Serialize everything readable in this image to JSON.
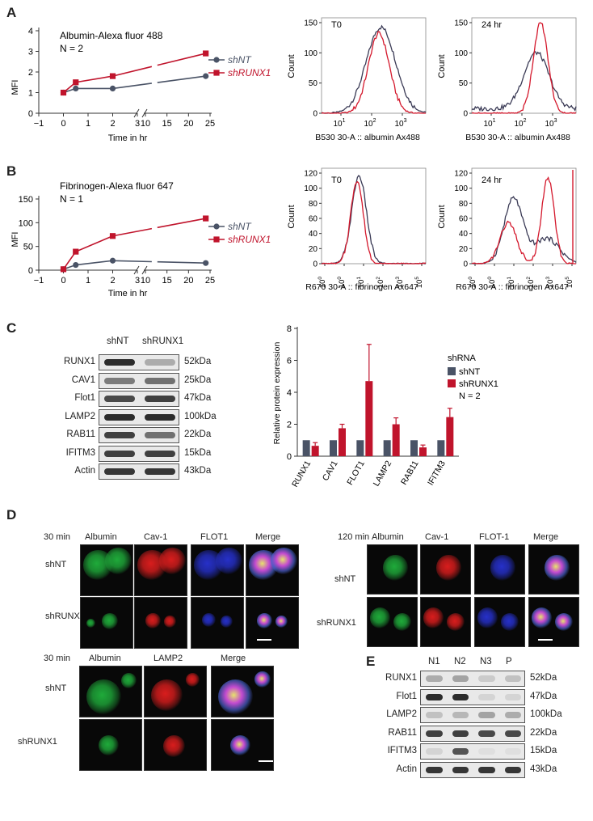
{
  "panels": {
    "A": "A",
    "B": "B",
    "C": "C",
    "D": "D",
    "E": "E"
  },
  "panelA": {
    "line": {
      "title": "Albumin-Alexa fluor 488",
      "subtitle": "N = 2",
      "ylabel": "MFI",
      "xlabel": "Time in hr",
      "yticks": [
        "0",
        "1",
        "2",
        "3",
        "4"
      ],
      "xticks": [
        "−1",
        "0",
        "1",
        "2",
        "3",
        "10",
        "15",
        "20",
        "25"
      ],
      "legend": [
        "shNT",
        "shRUNX1"
      ]
    },
    "hist1": {
      "label": "T0",
      "ylabel": "Count",
      "xlabel": "B530 30-A :: albumin Ax488",
      "yticks": [
        "0",
        "50",
        "100",
        "150"
      ],
      "xticks": [
        "10",
        "10",
        "10"
      ],
      "xexp": [
        "1",
        "2",
        "3"
      ]
    },
    "hist2": {
      "label": "24 hr",
      "ylabel": "Count",
      "xlabel": "B530 30-A :: albumin Ax488",
      "yticks": [
        "0",
        "50",
        "100",
        "150"
      ],
      "xticks": [
        "10",
        "10",
        "10"
      ],
      "xexp": [
        "1",
        "2",
        "3"
      ]
    }
  },
  "panelB": {
    "line": {
      "title": "Fibrinogen-Alexa fluor 647",
      "subtitle": "N = 1",
      "ylabel": "MFI",
      "xlabel": "Time in hr",
      "yticks": [
        "0",
        "50",
        "100",
        "150"
      ],
      "xticks": [
        "−1",
        "0",
        "1",
        "2",
        "3",
        "10",
        "15",
        "20",
        "25"
      ],
      "legend": [
        "shNT",
        "shRUNX1"
      ]
    },
    "hist1": {
      "label": "T0",
      "ylabel": "Count",
      "xlabel": "R670 30-A :: fibrinogen Ax647",
      "yticks": [
        "0",
        "20",
        "40",
        "60",
        "80",
        "100",
        "120"
      ]
    },
    "hist2": {
      "label": "24 hr",
      "ylabel": "Count",
      "xlabel": "R670 30-A :: fibrinogen Ax647",
      "yticks": [
        "0",
        "20",
        "40",
        "60",
        "80",
        "100",
        "120"
      ]
    }
  },
  "chart_data": [
    {
      "type": "line",
      "title": "Albumin-Alexa fluor 488",
      "xlabel": "Time in hr",
      "ylabel": "MFI",
      "x": [
        0,
        0.5,
        2,
        24
      ],
      "series": [
        {
          "name": "shNT",
          "values": [
            1.0,
            1.2,
            1.2,
            1.8
          ],
          "color": "#4a5366"
        },
        {
          "name": "shRUNX1",
          "values": [
            1.0,
            1.5,
            1.8,
            2.9
          ],
          "color": "#c0142c"
        }
      ],
      "ylim": [
        0,
        4
      ]
    },
    {
      "type": "line",
      "title": "Fibrinogen-Alexa fluor 647",
      "xlabel": "Time in hr",
      "ylabel": "MFI",
      "x": [
        0,
        0.5,
        2,
        24
      ],
      "series": [
        {
          "name": "shNT",
          "values": [
            2,
            11,
            20,
            15
          ],
          "color": "#4a5366"
        },
        {
          "name": "shRUNX1",
          "values": [
            2,
            39,
            72,
            109
          ],
          "color": "#c0142c"
        }
      ],
      "ylim": [
        0,
        150
      ]
    },
    {
      "type": "bar",
      "ylabel": "Relative protein expression",
      "categories": [
        "RUNX1",
        "CAV1",
        "FLOT1",
        "LAMP2",
        "RAB11",
        "IFITM3"
      ],
      "series": [
        {
          "name": "shNT",
          "values": [
            1,
            1,
            1,
            1,
            1,
            1
          ],
          "errors": [
            0,
            0,
            0,
            0,
            0,
            0
          ],
          "color": "#4a5366"
        },
        {
          "name": "shRUNX1",
          "values": [
            0.65,
            1.75,
            4.7,
            2.0,
            0.55,
            2.45
          ],
          "errors": [
            0.2,
            0.25,
            2.3,
            0.4,
            0.15,
            0.55
          ],
          "color": "#c0142c"
        }
      ],
      "ylim": [
        0,
        8
      ],
      "yticks": [
        "0",
        "2",
        "4",
        "6",
        "8"
      ],
      "legend_title": "shRNA",
      "legend_note": "N = 2"
    }
  ],
  "panelC": {
    "blot_headers": [
      "shNT",
      "shRUNX1"
    ],
    "rows": [
      {
        "name": "RUNX1",
        "kda": "52kDa"
      },
      {
        "name": "CAV1",
        "kda": "25kDa"
      },
      {
        "name": "Flot1",
        "kda": "47kDa"
      },
      {
        "name": "LAMP2",
        "kda": "100kDa"
      },
      {
        "name": "RAB11",
        "kda": "22kDa"
      },
      {
        "name": "IFITM3",
        "kda": "15kDa"
      },
      {
        "name": "Actin",
        "kda": "43kDa"
      }
    ]
  },
  "panelD": {
    "left": {
      "time": "30 min",
      "cols": [
        "Albumin",
        "Cav-1",
        "FLOT1",
        "Merge"
      ],
      "rows": [
        "shNT",
        "shRUNX1"
      ]
    },
    "right": {
      "time": "120 min",
      "cols": [
        "Albumin",
        "Cav-1",
        "FLOT-1",
        "Merge"
      ],
      "rows": [
        "shNT",
        "shRUNX1"
      ]
    },
    "bottom": {
      "time": "30 min",
      "cols": [
        "Albumin",
        "LAMP2",
        "Merge"
      ],
      "rows": [
        "shNT",
        "shRUNX1"
      ]
    }
  },
  "panelE": {
    "lanes": [
      "N1",
      "N2",
      "N3",
      "P"
    ],
    "rows": [
      {
        "name": "RUNX1",
        "kda": "52kDa"
      },
      {
        "name": "Flot1",
        "kda": "47kDa"
      },
      {
        "name": "LAMP2",
        "kda": "100kDa"
      },
      {
        "name": "RAB11",
        "kda": "22kDa"
      },
      {
        "name": "IFITM3",
        "kda": "15kDa"
      },
      {
        "name": "Actin",
        "kda": "43kDa"
      }
    ]
  }
}
